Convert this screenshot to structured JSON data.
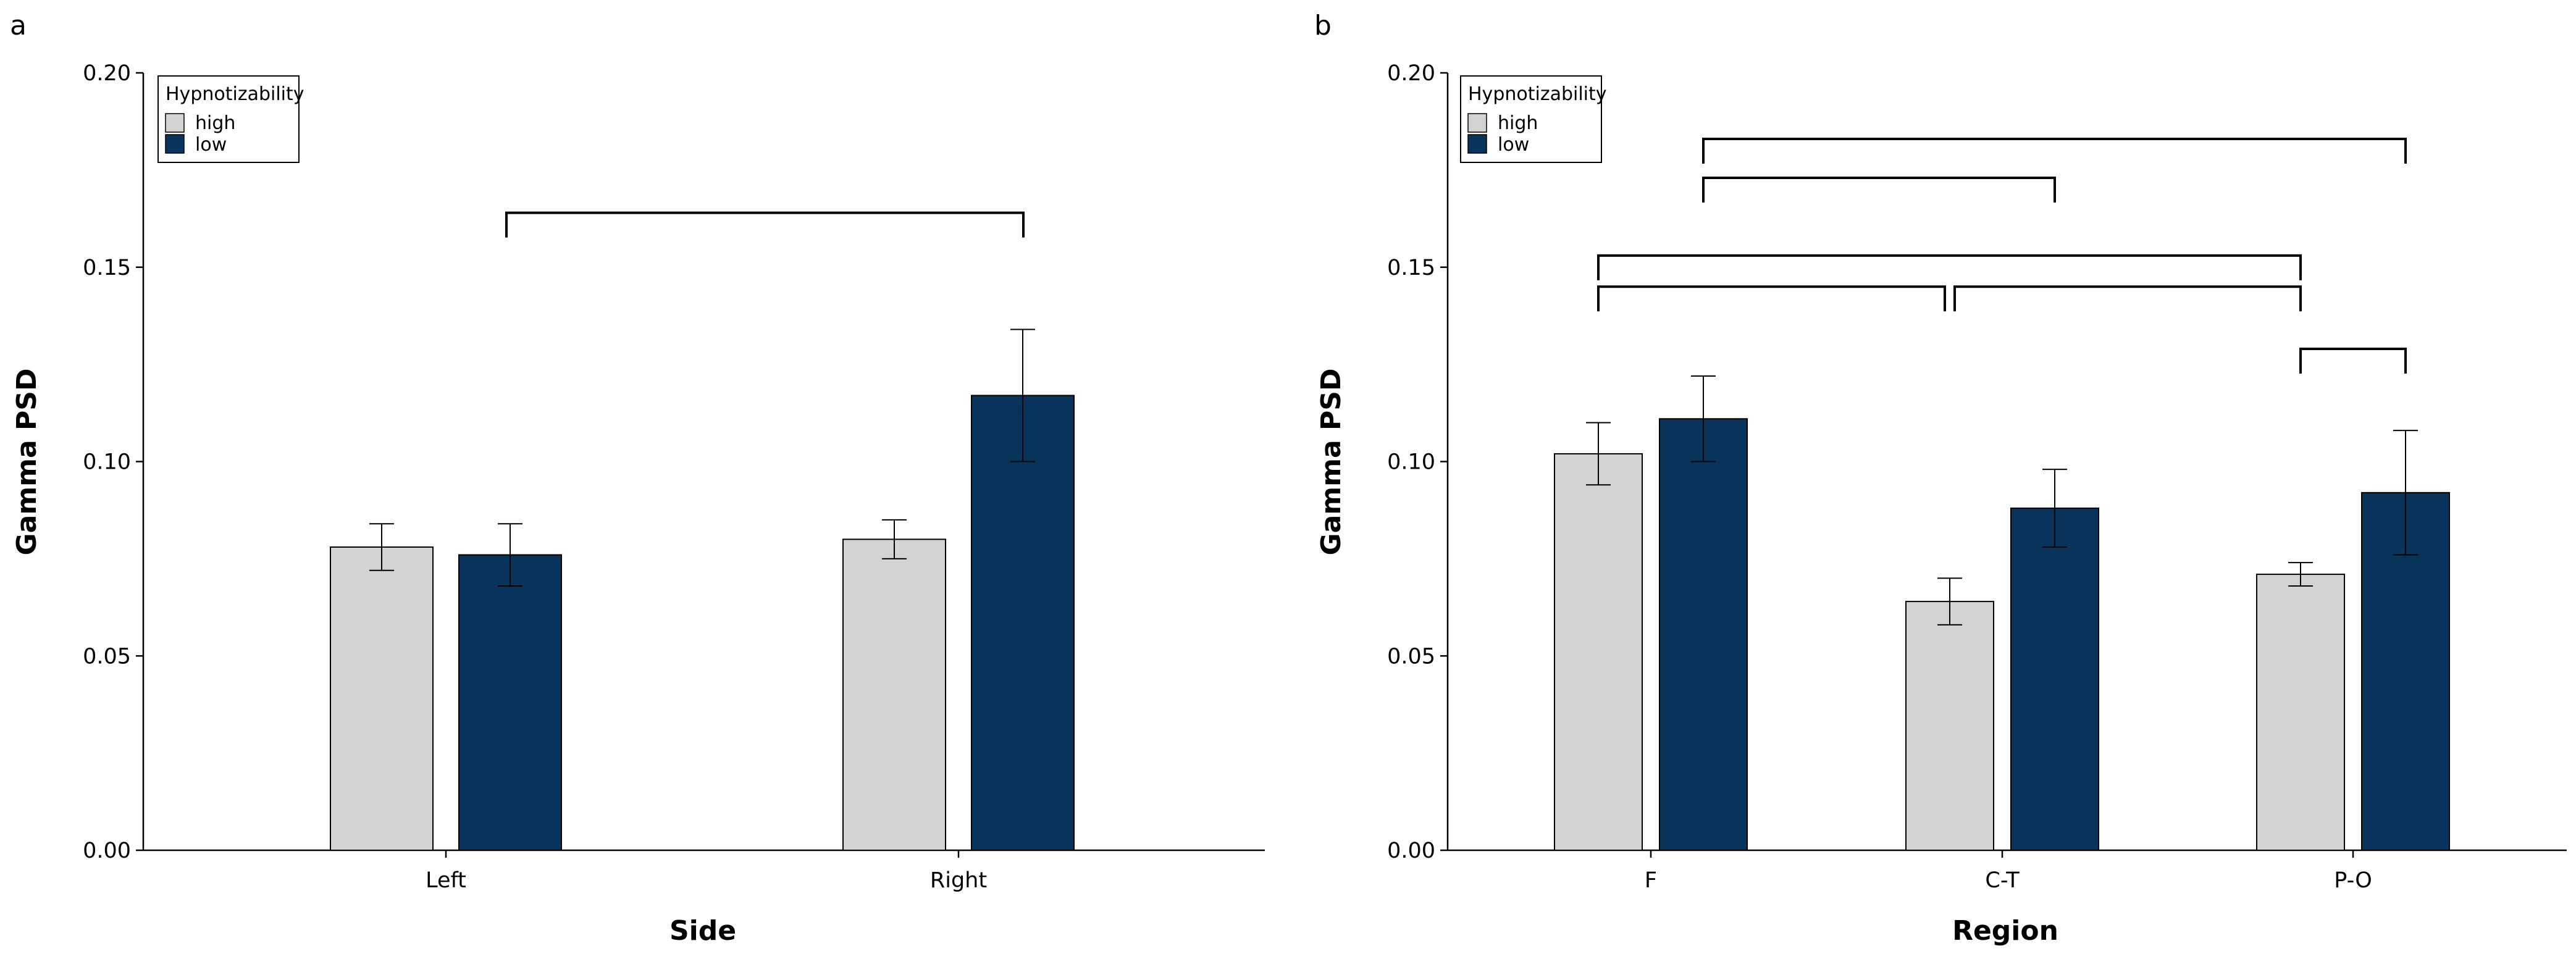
{
  "chart_data": [
    {
      "panel_label": "a",
      "type": "bar",
      "xlabel": "Side",
      "ylabel": "Gamma PSD",
      "ylim": [
        0,
        0.2
      ],
      "yticks": [
        "0.00",
        "0.05",
        "0.10",
        "0.15",
        "0.20"
      ],
      "categories": [
        "Left",
        "Right"
      ],
      "legend": {
        "title": "Hypnotizability",
        "entries": [
          "high",
          "low"
        ],
        "position": "top-left"
      },
      "series": [
        {
          "name": "high",
          "color": "#d3d3d3",
          "values": [
            0.078,
            0.08
          ],
          "errors": [
            0.006,
            0.005
          ]
        },
        {
          "name": "low",
          "color": "#08335a",
          "values": [
            0.076,
            0.117
          ],
          "errors": [
            0.008,
            0.017
          ]
        }
      ],
      "significance": [
        {
          "from": "Left",
          "to": "Right",
          "y": 0.164
        }
      ]
    },
    {
      "panel_label": "b",
      "type": "bar",
      "xlabel": "Region",
      "ylabel": "Gamma PSD",
      "ylim": [
        0,
        0.2
      ],
      "yticks": [
        "0.00",
        "0.05",
        "0.10",
        "0.15",
        "0.20"
      ],
      "categories": [
        "F",
        "C-T",
        "P-O"
      ],
      "legend": {
        "title": "Hypnotizability",
        "entries": [
          "high",
          "low"
        ],
        "position": "top-left"
      },
      "series": [
        {
          "name": "high",
          "color": "#d3d3d3",
          "values": [
            0.102,
            0.064,
            0.071
          ],
          "errors": [
            0.008,
            0.006,
            0.003
          ]
        },
        {
          "name": "low",
          "color": "#08335a",
          "values": [
            0.111,
            0.088,
            0.092
          ],
          "errors": [
            0.011,
            0.01,
            0.016
          ]
        }
      ],
      "significance": [
        {
          "from": "F-low",
          "to": "P-O-low",
          "y": 0.183
        },
        {
          "from": "F-low",
          "to": "C-T-low",
          "y": 0.173
        },
        {
          "from": "F-high",
          "to": "P-O-high",
          "y": 0.153
        },
        {
          "from": "F-high",
          "to": "C-T-high",
          "y": 0.145
        },
        {
          "from": "C-T-high",
          "to": "P-O-high",
          "y": 0.145
        },
        {
          "from": "P-O-high",
          "to": "P-O-low",
          "y": 0.129
        }
      ]
    }
  ]
}
